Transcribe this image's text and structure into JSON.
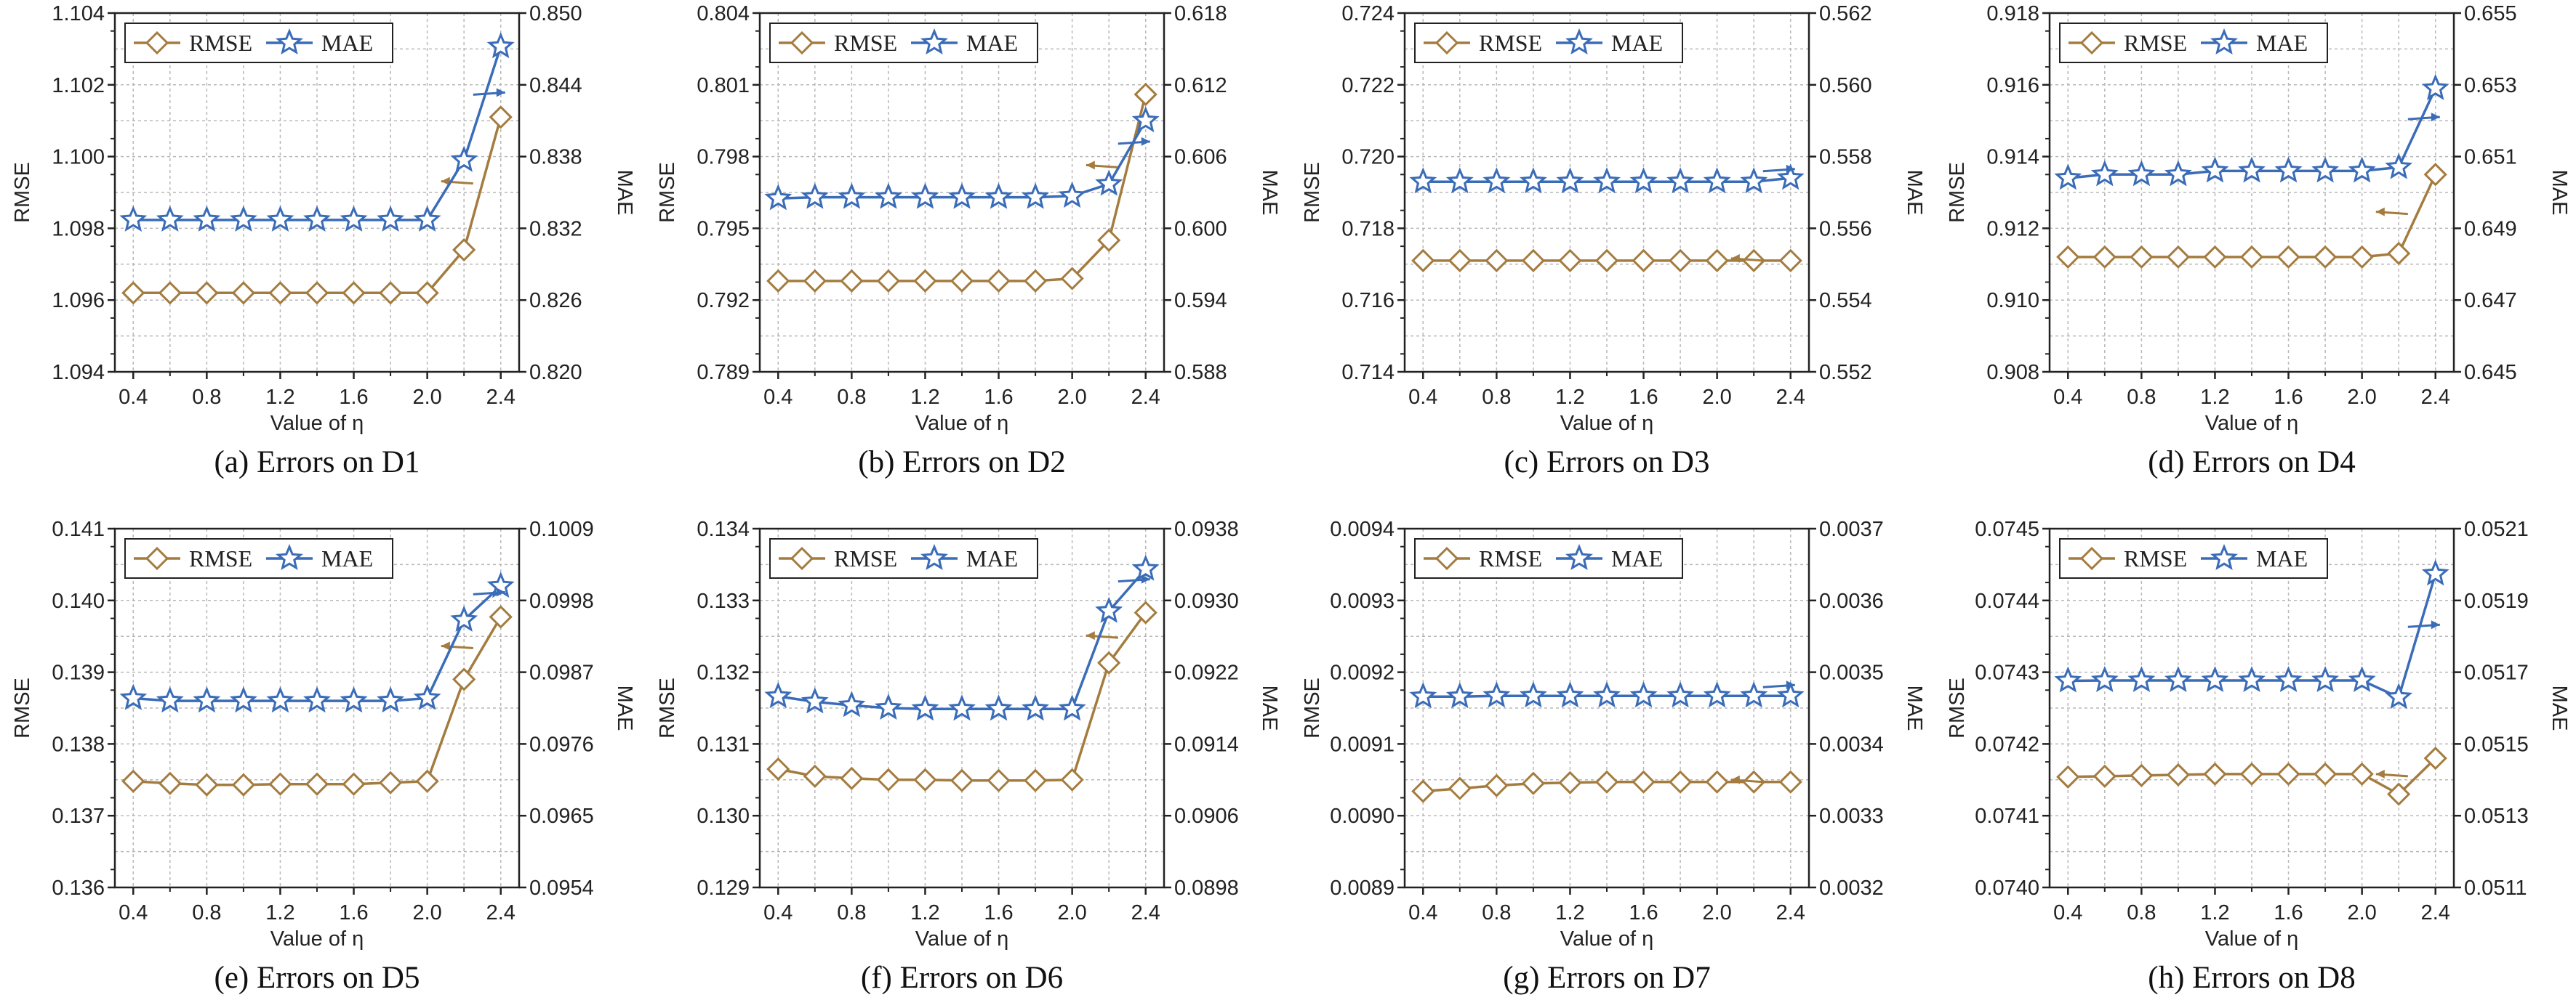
{
  "colors": {
    "rmse": "#A47C3F",
    "mae": "#3A6CB8",
    "grid": "#B8B8B8"
  },
  "chart_data": [
    {
      "type": "line",
      "caption": "(a) Errors on D1",
      "xlabel": "Value of η",
      "ylabel_left": "RMSE",
      "ylabel_right": "MAE",
      "x": [
        0.4,
        0.6,
        0.8,
        1.0,
        1.2,
        1.4,
        1.6,
        1.8,
        2.0,
        2.2,
        2.4
      ],
      "xticks": [
        "0.4",
        "0.8",
        "1.2",
        "1.6",
        "2.0",
        "2.4"
      ],
      "ylim_left": [
        1.094,
        1.104
      ],
      "yticks_left": [
        "1.094",
        "1.096",
        "1.098",
        "1.100",
        "1.102",
        "1.104"
      ],
      "ylim_right": [
        0.82,
        0.85
      ],
      "yticks_right": [
        "0.820",
        "0.826",
        "0.832",
        "0.838",
        "0.844",
        "0.850"
      ],
      "legend": "top-left",
      "series": [
        {
          "name": "RMSE",
          "axis": "left",
          "marker": "diamond",
          "values": [
            1.0962,
            1.0962,
            1.0962,
            1.0962,
            1.0962,
            1.0962,
            1.0962,
            1.0962,
            1.0962,
            1.0974,
            1.1011
          ]
        },
        {
          "name": "MAE",
          "axis": "right",
          "marker": "star",
          "values": [
            0.8327,
            0.8327,
            0.8327,
            0.8327,
            0.8327,
            0.8327,
            0.8327,
            0.8327,
            0.8327,
            0.8377,
            0.8472
          ]
        }
      ]
    },
    {
      "type": "line",
      "caption": "(b) Errors on D2",
      "xlabel": "Value of η",
      "ylabel_left": "RMSE",
      "ylabel_right": "MAE",
      "x": [
        0.4,
        0.6,
        0.8,
        1.0,
        1.2,
        1.4,
        1.6,
        1.8,
        2.0,
        2.2,
        2.4
      ],
      "xticks": [
        "0.4",
        "0.8",
        "1.2",
        "1.6",
        "2.0",
        "2.4"
      ],
      "ylim_left": [
        0.789,
        0.804
      ],
      "yticks_left": [
        "0.789",
        "0.792",
        "0.795",
        "0.798",
        "0.801",
        "0.804"
      ],
      "ylim_right": [
        0.588,
        0.618
      ],
      "yticks_right": [
        "0.588",
        "0.594",
        "0.600",
        "0.606",
        "0.612",
        "0.618"
      ],
      "legend": "top-left",
      "series": [
        {
          "name": "RMSE",
          "axis": "left",
          "marker": "diamond",
          "values": [
            0.7928,
            0.7928,
            0.7928,
            0.7928,
            0.7928,
            0.7928,
            0.7928,
            0.7928,
            0.7929,
            0.7945,
            0.8006
          ]
        },
        {
          "name": "MAE",
          "axis": "right",
          "marker": "star",
          "values": [
            0.6025,
            0.6026,
            0.6026,
            0.6026,
            0.6026,
            0.6026,
            0.6026,
            0.6026,
            0.6027,
            0.6037,
            0.609
          ]
        }
      ]
    },
    {
      "type": "line",
      "caption": "(c) Errors on D3",
      "xlabel": "Value of η",
      "ylabel_left": "RMSE",
      "ylabel_right": "MAE",
      "x": [
        0.4,
        0.6,
        0.8,
        1.0,
        1.2,
        1.4,
        1.6,
        1.8,
        2.0,
        2.2,
        2.4
      ],
      "xticks": [
        "0.4",
        "0.8",
        "1.2",
        "1.6",
        "2.0",
        "2.4"
      ],
      "ylim_left": [
        0.714,
        0.724
      ],
      "yticks_left": [
        "0.714",
        "0.716",
        "0.718",
        "0.720",
        "0.722",
        "0.724"
      ],
      "ylim_right": [
        0.552,
        0.562
      ],
      "yticks_right": [
        "0.552",
        "0.554",
        "0.556",
        "0.558",
        "0.560",
        "0.562"
      ],
      "legend": "top-left",
      "series": [
        {
          "name": "RMSE",
          "axis": "left",
          "marker": "diamond",
          "values": [
            0.7171,
            0.7171,
            0.7171,
            0.7171,
            0.7171,
            0.7171,
            0.7171,
            0.7171,
            0.7171,
            0.7171,
            0.7171
          ]
        },
        {
          "name": "MAE",
          "axis": "right",
          "marker": "star",
          "values": [
            0.5573,
            0.5573,
            0.5573,
            0.5573,
            0.5573,
            0.5573,
            0.5573,
            0.5573,
            0.5573,
            0.5573,
            0.5574
          ]
        }
      ]
    },
    {
      "type": "line",
      "caption": "(d) Errors on D4",
      "xlabel": "Value of η",
      "ylabel_left": "RMSE",
      "ylabel_right": "MAE",
      "x": [
        0.4,
        0.6,
        0.8,
        1.0,
        1.2,
        1.4,
        1.6,
        1.8,
        2.0,
        2.2,
        2.4
      ],
      "xticks": [
        "0.4",
        "0.8",
        "1.2",
        "1.6",
        "2.0",
        "2.4"
      ],
      "ylim_left": [
        0.908,
        0.918
      ],
      "yticks_left": [
        "0.908",
        "0.910",
        "0.912",
        "0.914",
        "0.916",
        "0.918"
      ],
      "ylim_right": [
        0.645,
        0.655
      ],
      "yticks_right": [
        "0.645",
        "0.647",
        "0.649",
        "0.651",
        "0.653",
        "0.655"
      ],
      "legend": "top-left",
      "series": [
        {
          "name": "RMSE",
          "axis": "left",
          "marker": "diamond",
          "values": [
            0.9112,
            0.9112,
            0.9112,
            0.9112,
            0.9112,
            0.9112,
            0.9112,
            0.9112,
            0.9112,
            0.9113,
            0.9135
          ]
        },
        {
          "name": "MAE",
          "axis": "right",
          "marker": "star",
          "values": [
            0.6504,
            0.6505,
            0.6505,
            0.6505,
            0.6506,
            0.6506,
            0.6506,
            0.6506,
            0.6506,
            0.6507,
            0.6529
          ]
        }
      ]
    },
    {
      "type": "line",
      "caption": "(e) Errors on D5",
      "xlabel": "Value of η",
      "ylabel_left": "RMSE",
      "ylabel_right": "MAE",
      "x": [
        0.4,
        0.6,
        0.8,
        1.0,
        1.2,
        1.4,
        1.6,
        1.8,
        2.0,
        2.2,
        2.4
      ],
      "xticks": [
        "0.4",
        "0.8",
        "1.2",
        "1.6",
        "2.0",
        "2.4"
      ],
      "ylim_left": [
        0.136,
        0.141
      ],
      "yticks_left": [
        "0.136",
        "0.137",
        "0.138",
        "0.139",
        "0.140",
        "0.141"
      ],
      "ylim_right": [
        0.0954,
        0.1009
      ],
      "yticks_right": [
        "0.0954",
        "0.0965",
        "0.0976",
        "0.0987",
        "0.0998",
        "0.1009"
      ],
      "legend": "top-left",
      "series": [
        {
          "name": "RMSE",
          "axis": "left",
          "marker": "diamond",
          "values": [
            0.13748,
            0.13745,
            0.13743,
            0.13743,
            0.13744,
            0.13744,
            0.13744,
            0.13746,
            0.13748,
            0.1389,
            0.13977
          ]
        },
        {
          "name": "MAE",
          "axis": "right",
          "marker": "star",
          "values": [
            0.0983,
            0.09826,
            0.09826,
            0.09826,
            0.09826,
            0.09826,
            0.09826,
            0.09826,
            0.0983,
            0.0995,
            0.10002
          ]
        }
      ]
    },
    {
      "type": "line",
      "caption": "(f) Errors on D6",
      "xlabel": "Value of η",
      "ylabel_left": "RMSE",
      "ylabel_right": "MAE",
      "x": [
        0.4,
        0.6,
        0.8,
        1.0,
        1.2,
        1.4,
        1.6,
        1.8,
        2.0,
        2.2,
        2.4
      ],
      "xticks": [
        "0.4",
        "0.8",
        "1.2",
        "1.6",
        "2.0",
        "2.4"
      ],
      "ylim_left": [
        0.129,
        0.134
      ],
      "yticks_left": [
        "0.129",
        "0.130",
        "0.131",
        "0.132",
        "0.133",
        "0.134"
      ],
      "ylim_right": [
        0.0898,
        0.0938
      ],
      "yticks_right": [
        "0.0898",
        "0.0906",
        "0.0914",
        "0.0922",
        "0.0930",
        "0.0938"
      ],
      "legend": "top-left",
      "series": [
        {
          "name": "RMSE",
          "axis": "left",
          "marker": "diamond",
          "values": [
            0.13065,
            0.13055,
            0.13052,
            0.1305,
            0.1305,
            0.13049,
            0.13049,
            0.13049,
            0.1305,
            0.13213,
            0.13283
          ]
        },
        {
          "name": "MAE",
          "axis": "right",
          "marker": "star",
          "values": [
            0.09193,
            0.09187,
            0.09183,
            0.0918,
            0.09179,
            0.09179,
            0.09179,
            0.09179,
            0.09179,
            0.09288,
            0.09335
          ]
        }
      ]
    },
    {
      "type": "line",
      "caption": "(g) Errors on D7",
      "xlabel": "Value of η",
      "ylabel_left": "RMSE",
      "ylabel_right": "MAE",
      "x": [
        0.4,
        0.6,
        0.8,
        1.0,
        1.2,
        1.4,
        1.6,
        1.8,
        2.0,
        2.2,
        2.4
      ],
      "xticks": [
        "0.4",
        "0.8",
        "1.2",
        "1.6",
        "2.0",
        "2.4"
      ],
      "ylim_left": [
        0.0089,
        0.0094
      ],
      "yticks_left": [
        "0.0089",
        "0.0090",
        "0.0091",
        "0.0092",
        "0.0093",
        "0.0094"
      ],
      "ylim_right": [
        0.0032,
        0.0037
      ],
      "yticks_right": [
        "0.0032",
        "0.0033",
        "0.0034",
        "0.0035",
        "0.0036",
        "0.0037"
      ],
      "legend": "top-left",
      "series": [
        {
          "name": "RMSE",
          "axis": "left",
          "marker": "diamond",
          "values": [
            0.009034,
            0.009038,
            0.009042,
            0.009045,
            0.009046,
            0.009047,
            0.009047,
            0.009047,
            0.009047,
            0.009047,
            0.009047
          ]
        },
        {
          "name": "MAE",
          "axis": "right",
          "marker": "star",
          "values": [
            0.003466,
            0.003466,
            0.003467,
            0.003467,
            0.003467,
            0.003467,
            0.003467,
            0.003467,
            0.003467,
            0.003467,
            0.003467
          ]
        }
      ]
    },
    {
      "type": "line",
      "caption": "(h) Errors on D8",
      "xlabel": "Value of η",
      "ylabel_left": "RMSE",
      "ylabel_right": "MAE",
      "x": [
        0.4,
        0.6,
        0.8,
        1.0,
        1.2,
        1.4,
        1.6,
        1.8,
        2.0,
        2.2,
        2.4
      ],
      "xticks": [
        "0.4",
        "0.8",
        "1.2",
        "1.6",
        "2.0",
        "2.4"
      ],
      "ylim_left": [
        0.074,
        0.0745
      ],
      "yticks_left": [
        "0.0740",
        "0.0741",
        "0.0742",
        "0.0743",
        "0.0744",
        "0.0745"
      ],
      "ylim_right": [
        0.0511,
        0.0521
      ],
      "yticks_right": [
        "0.0511",
        "0.0513",
        "0.0515",
        "0.0517",
        "0.0519",
        "0.0521"
      ],
      "legend": "top-left",
      "series": [
        {
          "name": "RMSE",
          "axis": "left",
          "marker": "diamond",
          "values": [
            0.074154,
            0.074155,
            0.074156,
            0.074157,
            0.074158,
            0.074158,
            0.074158,
            0.074158,
            0.074158,
            0.07413,
            0.07418
          ]
        },
        {
          "name": "MAE",
          "axis": "right",
          "marker": "star",
          "values": [
            0.051676,
            0.051677,
            0.051677,
            0.051677,
            0.051677,
            0.051677,
            0.051677,
            0.051677,
            0.051677,
            0.05163,
            0.051974
          ]
        }
      ]
    }
  ]
}
